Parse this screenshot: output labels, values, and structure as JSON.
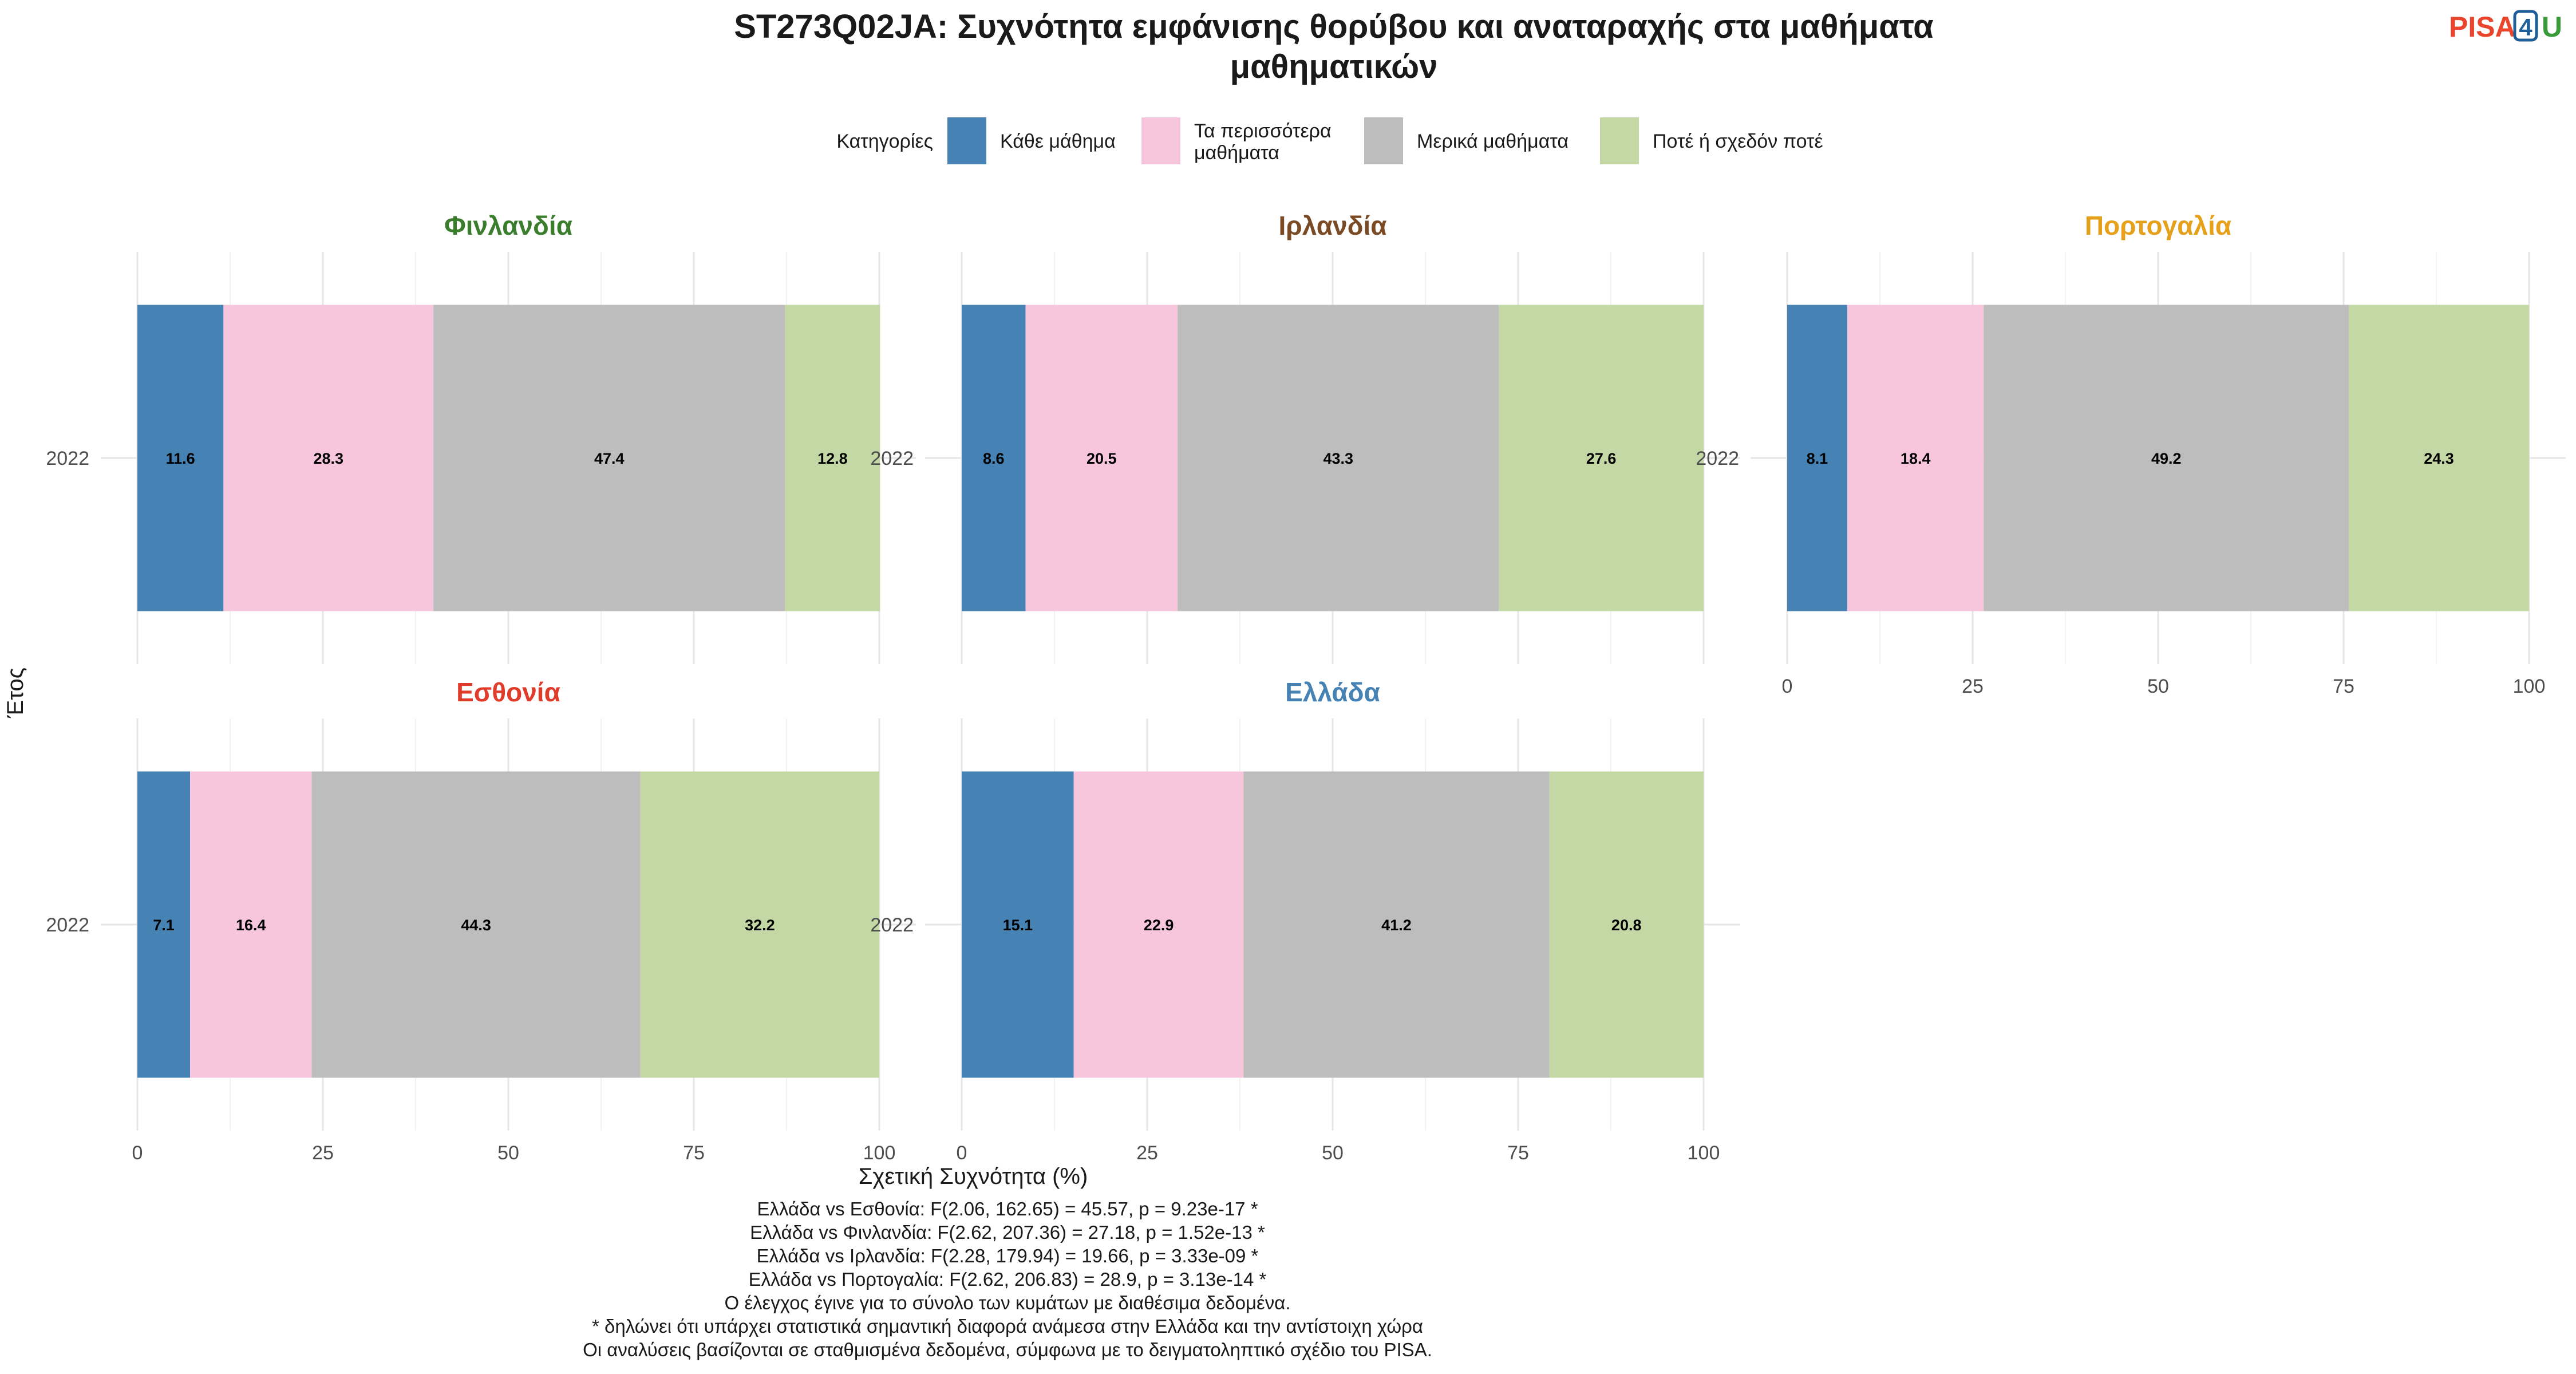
{
  "title_line1": "ST273Q02JA: Συχνότητα εμφάνισης θορύβου και αναταραχής στα μαθήματα",
  "title_line2": "μαθηματικών",
  "logo": {
    "text1": "PISA",
    "text2": "4",
    "text3": "U",
    "color1": "#e8452c",
    "color2": "#1f5f99",
    "color3": "#3a9b3a"
  },
  "legend": {
    "title": "Κατηγορίες",
    "items": [
      {
        "label_lines": [
          "Κάθε μάθημα"
        ],
        "color": "#4682b4"
      },
      {
        "label_lines": [
          "Τα περισσότερα",
          "μαθήματα"
        ],
        "color": "#f7c6dc"
      },
      {
        "label_lines": [
          "Μερικά μαθήματα"
        ],
        "color": "#bdbdbd"
      },
      {
        "label_lines": [
          "Ποτέ ή σχεδόν ποτέ"
        ],
        "color": "#c3d8a5"
      }
    ]
  },
  "y_axis_label": "Έτος",
  "x_axis_label": "Σχετική Συχνότητα (%)",
  "x_ticks": [
    "0",
    "25",
    "50",
    "75",
    "100"
  ],
  "chart_data": {
    "type": "bar",
    "orientation": "horizontal-stacked",
    "xlim": [
      0,
      100
    ],
    "categories": [
      "Κάθε μάθημα",
      "Τα περισσότερα μαθήματα",
      "Μερικά μαθήματα",
      "Ποτέ ή σχεδόν ποτέ"
    ],
    "panels": [
      {
        "country": "Φινλανδία",
        "title_color": "#3a7d2c",
        "year": "2022",
        "values": [
          11.6,
          28.3,
          47.4,
          12.8
        ]
      },
      {
        "country": "Ιρλανδία",
        "title_color": "#7a4a24",
        "year": "2022",
        "values": [
          8.6,
          20.5,
          43.3,
          27.6
        ]
      },
      {
        "country": "Πορτογαλία",
        "title_color": "#e6a01a",
        "year": "2022",
        "values": [
          8.1,
          18.4,
          49.2,
          24.3
        ]
      },
      {
        "country": "Εσθονία",
        "title_color": "#e03c2c",
        "year": "2022",
        "values": [
          7.1,
          16.4,
          44.3,
          32.2
        ]
      },
      {
        "country": "Ελλάδα",
        "title_color": "#4682b4",
        "year": "2022",
        "values": [
          15.1,
          22.9,
          41.2,
          20.8
        ]
      }
    ]
  },
  "footnotes": [
    "Ελλάδα vs Εσθονία: F(2.06, 162.65) = 45.57, p = 9.23e-17 *",
    "Ελλάδα vs Φινλανδία: F(2.62, 207.36) = 27.18, p = 1.52e-13 *",
    "Ελλάδα vs Ιρλανδία: F(2.28, 179.94) = 19.66, p = 3.33e-09 *",
    "Ελλάδα vs Πορτογαλία: F(2.62, 206.83) = 28.9, p = 3.13e-14 *",
    "Ο έλεγχος έγινε για το σύνολο των κυμάτων με διαθέσιμα δεδομένα.",
    "* δηλώνει ότι υπάρχει στατιστικά σημαντική διαφορά ανάμεσα στην Ελλάδα και την αντίστοιχη χώρα",
    "Οι αναλύσεις βασίζονται σε σταθμισμένα δεδομένα, σύμφωνα με το δειγματοληπτικό σχέδιο του PISA."
  ]
}
